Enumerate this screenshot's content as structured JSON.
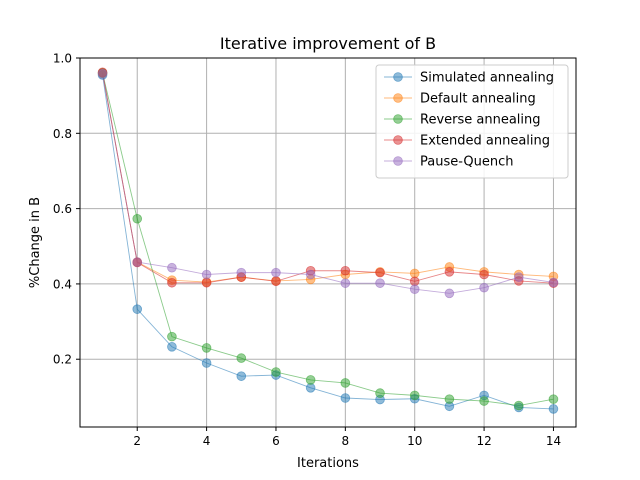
{
  "chart_data": {
    "type": "line",
    "title": "Iterative improvement of B",
    "xlabel": "Iterations",
    "ylabel": "%Change in B",
    "xlim": [
      0.35,
      14.65
    ],
    "ylim": [
      0.02,
      1.0
    ],
    "xticks": [
      "2",
      "4",
      "6",
      "8",
      "10",
      "12",
      "14"
    ],
    "yticks": [
      "0.2",
      "0.4",
      "0.6",
      "0.8",
      "1.0"
    ],
    "grid": true,
    "legend_position": "top-right",
    "x": [
      1,
      2,
      3,
      4,
      5,
      6,
      7,
      8,
      9,
      10,
      11,
      12,
      13,
      14
    ],
    "series": [
      {
        "name": "Simulated annealing",
        "color": "#1f77b4",
        "values": [
          0.955,
          0.333,
          0.233,
          0.19,
          0.155,
          0.158,
          0.124,
          0.097,
          0.093,
          0.095,
          0.075,
          0.104,
          0.072,
          0.068
        ]
      },
      {
        "name": "Default annealing",
        "color": "#ff7f0e",
        "values": [
          0.96,
          0.458,
          0.41,
          0.405,
          0.418,
          0.408,
          0.412,
          0.425,
          0.432,
          0.428,
          0.445,
          0.432,
          0.425,
          0.42
        ]
      },
      {
        "name": "Reverse annealing",
        "color": "#2ca02c",
        "values": [
          0.96,
          0.573,
          0.26,
          0.23,
          0.203,
          0.166,
          0.145,
          0.137,
          0.11,
          0.104,
          0.094,
          0.089,
          0.077,
          0.094
        ]
      },
      {
        "name": "Extended annealing",
        "color": "#d62728",
        "values": [
          0.962,
          0.457,
          0.403,
          0.403,
          0.418,
          0.407,
          0.435,
          0.435,
          0.43,
          0.407,
          0.432,
          0.425,
          0.408,
          0.402
        ]
      },
      {
        "name": "Pause-Quench",
        "color": "#9467bd",
        "values": [
          0.958,
          0.458,
          0.443,
          0.425,
          0.43,
          0.43,
          0.425,
          0.402,
          0.402,
          0.386,
          0.375,
          0.39,
          0.418,
          0.404
        ]
      }
    ]
  }
}
